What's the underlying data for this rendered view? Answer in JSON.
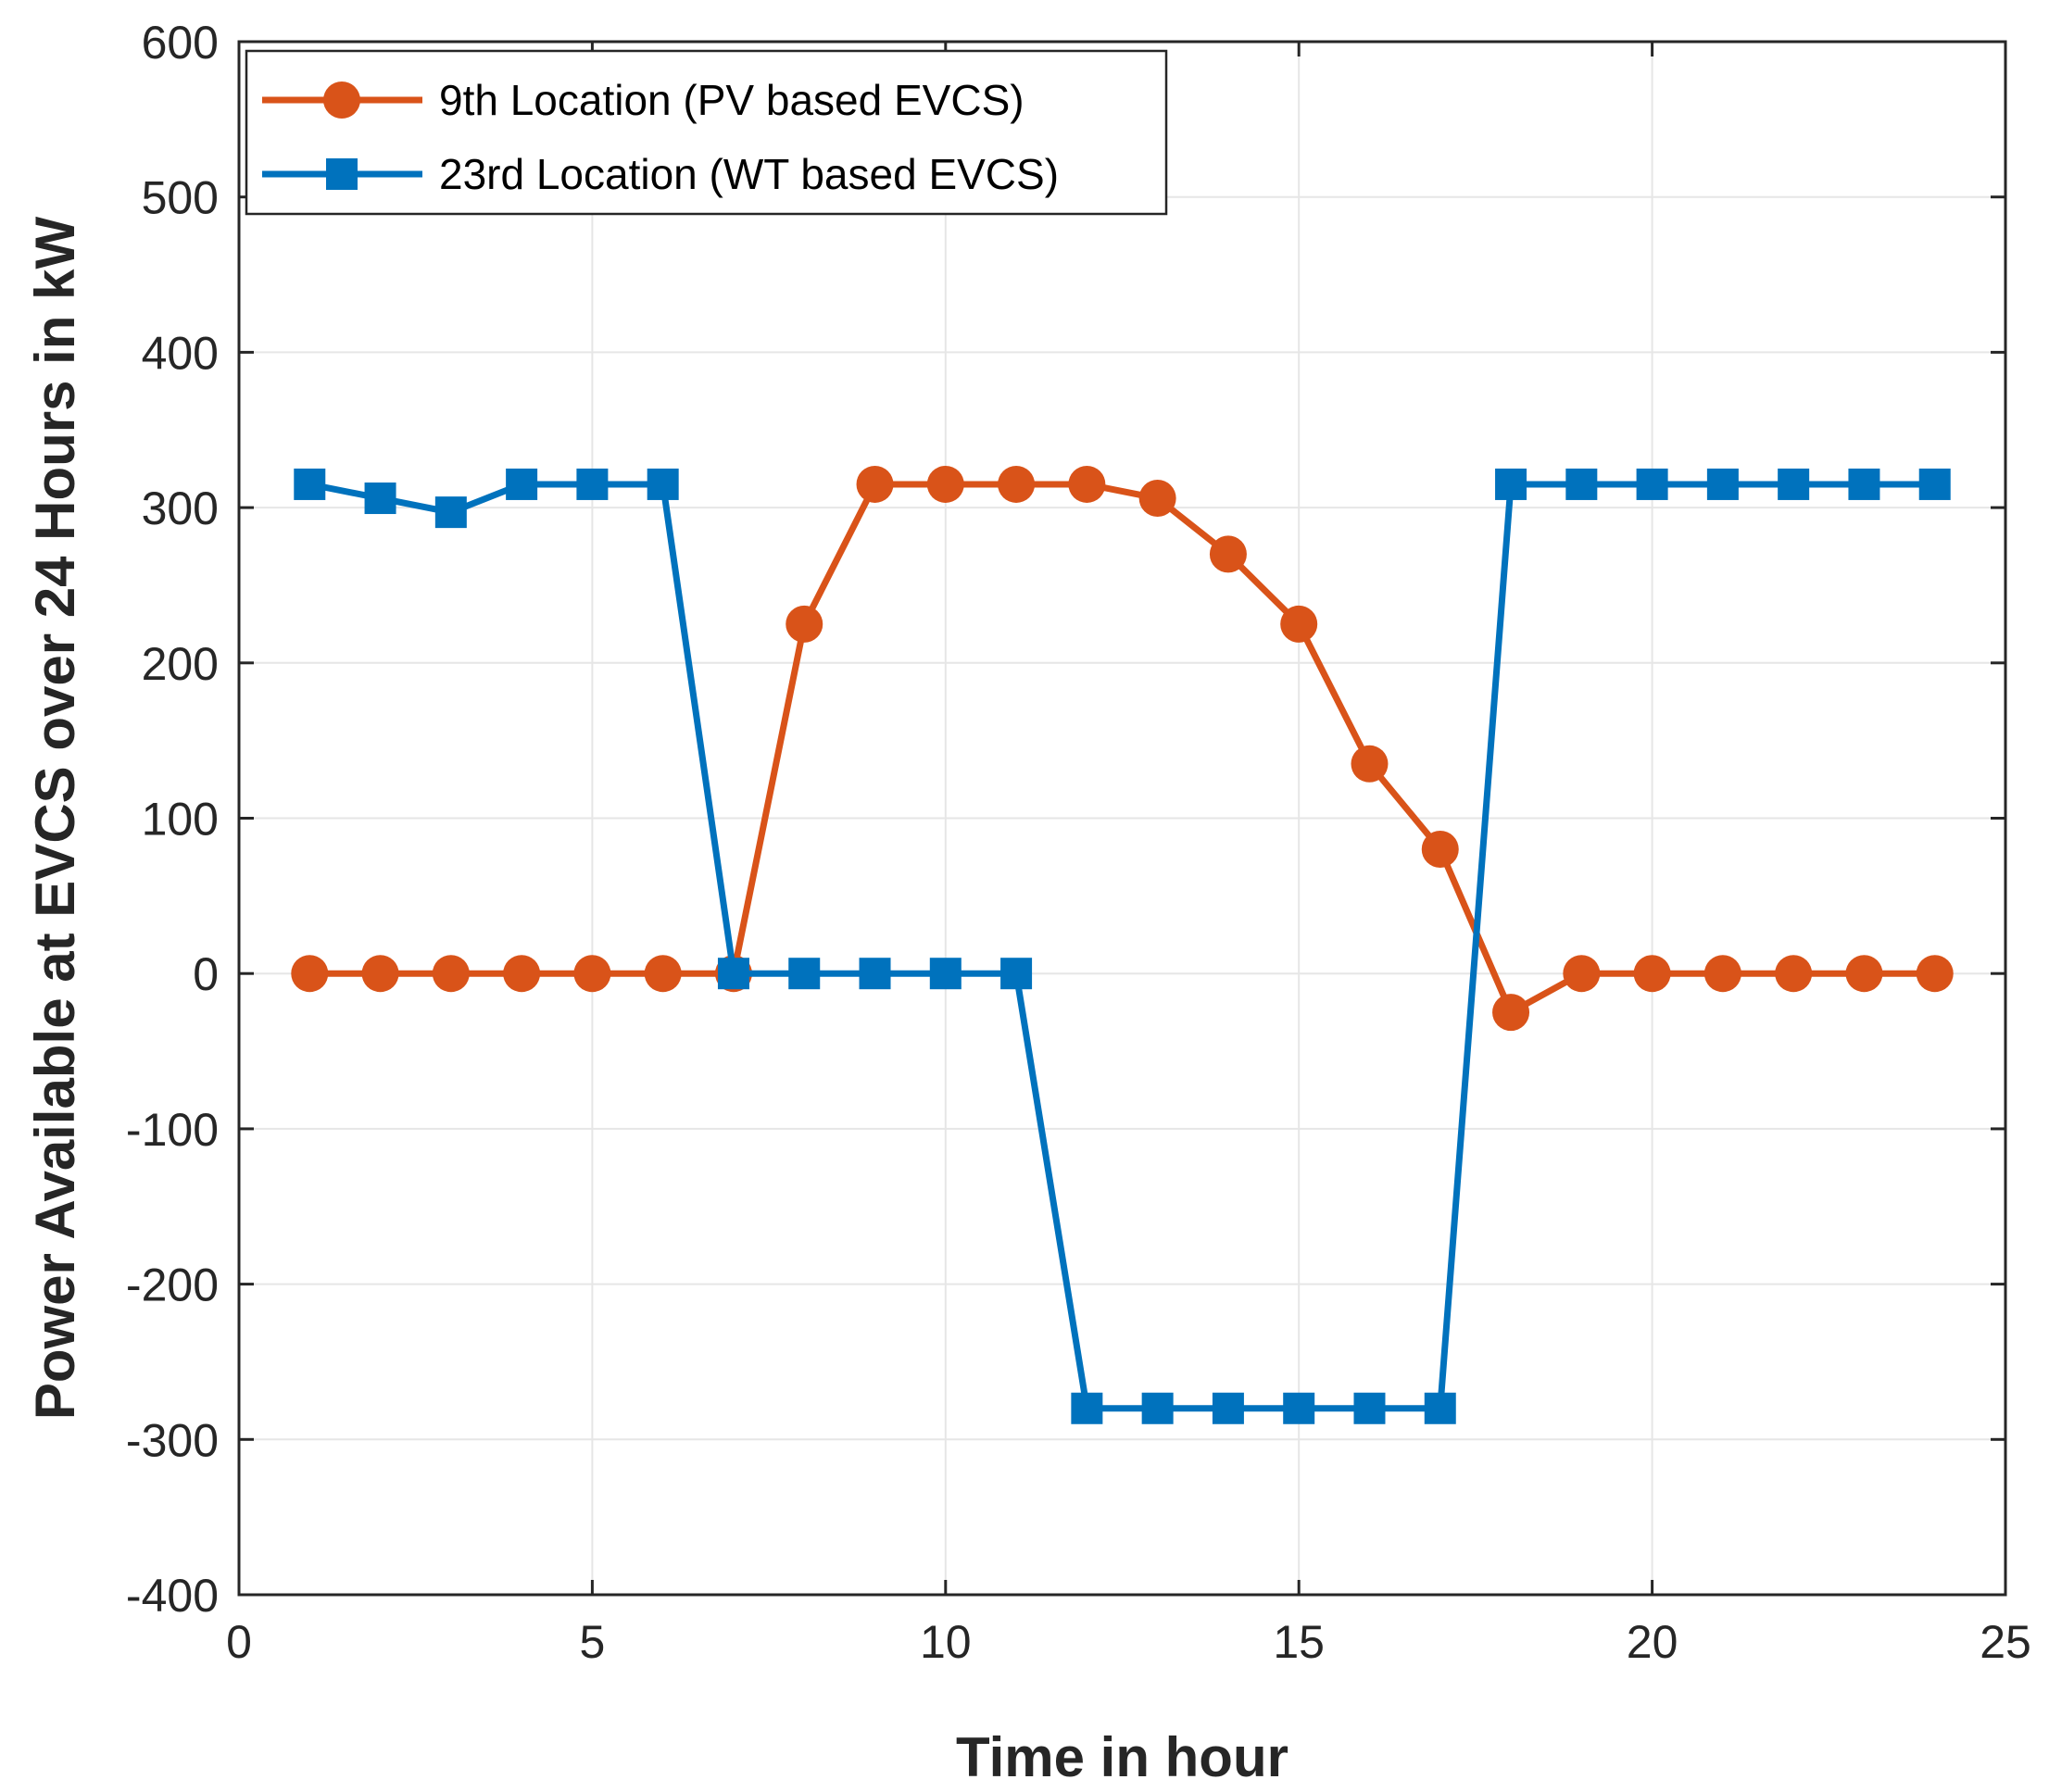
{
  "chart_data": {
    "type": "line",
    "title": "",
    "xlabel": "Time in hour",
    "ylabel": "Power Available at EVCS over 24 Hours in kW",
    "xlim": [
      0,
      25
    ],
    "ylim": [
      -400,
      600
    ],
    "xticks": [
      0,
      5,
      10,
      15,
      20,
      25
    ],
    "yticks": [
      -400,
      -300,
      -200,
      -100,
      0,
      100,
      200,
      300,
      400,
      500,
      600
    ],
    "grid": true,
    "legend_position": "top-left",
    "x": [
      1,
      2,
      3,
      4,
      5,
      6,
      7,
      8,
      9,
      10,
      11,
      12,
      13,
      14,
      15,
      16,
      17,
      18,
      19,
      20,
      21,
      22,
      23,
      24
    ],
    "series": [
      {
        "name": "9th Location (PV based EVCS)",
        "color": "#D95319",
        "marker": "circle",
        "values": [
          0,
          0,
          0,
          0,
          0,
          0,
          0,
          225,
          315,
          315,
          315,
          315,
          306,
          270,
          225,
          135,
          80,
          -25,
          0,
          0,
          0,
          0,
          0,
          0
        ]
      },
      {
        "name": "23rd Location (WT based EVCS)",
        "color": "#0072BD",
        "marker": "square",
        "values": [
          315,
          306,
          297,
          315,
          315,
          315,
          0,
          0,
          0,
          0,
          0,
          -280,
          -280,
          -280,
          -280,
          -280,
          -280,
          315,
          315,
          315,
          315,
          315,
          315,
          315
        ]
      }
    ]
  }
}
